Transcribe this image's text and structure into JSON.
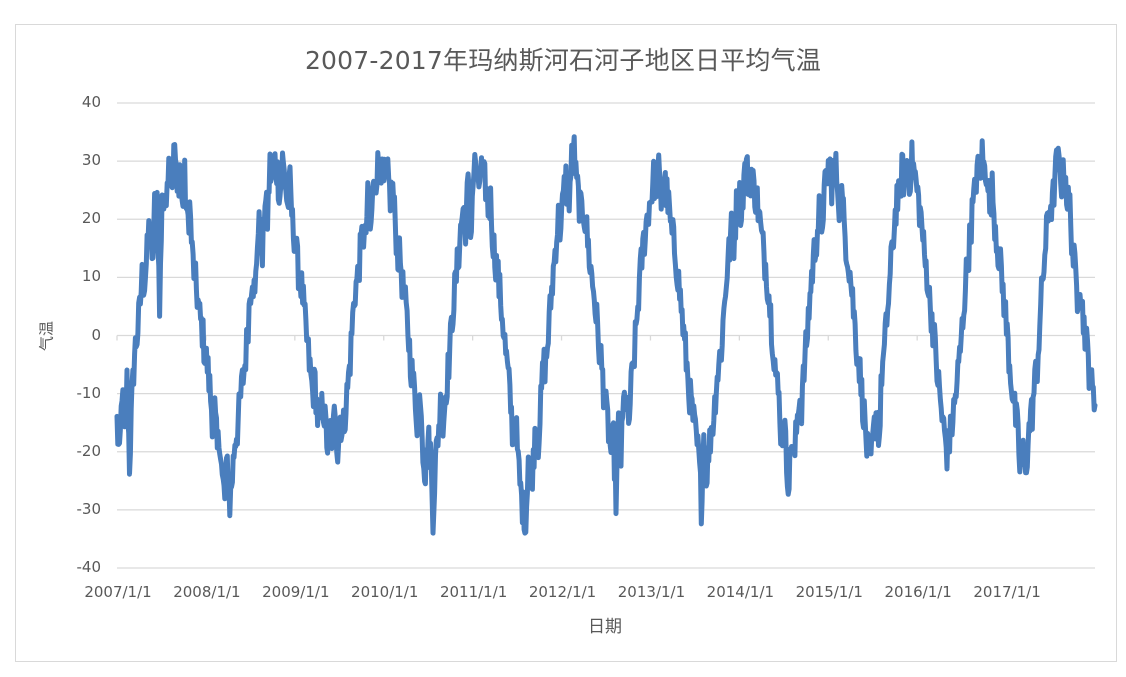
{
  "chart": {
    "title": "2007-2017年玛纳斯河石河子地区日平均气温",
    "xlabel": "日期",
    "ylabel": "气温",
    "y_ticks": [
      "40",
      "30",
      "20",
      "10",
      "0",
      "-10",
      "-20",
      "-30",
      "-40"
    ],
    "x_ticks": [
      "2007/1/1",
      "2008/1/1",
      "2009/1/1",
      "2010/1/1",
      "2011/1/1",
      "2012/1/1",
      "2013/1/1",
      "2014/1/1",
      "2015/1/1",
      "2016/1/1",
      "2017/1/1"
    ],
    "colors": {
      "series": "#4a7ebd",
      "grid": "#d9d9d9",
      "text": "#595959",
      "border": "#d9d9d9"
    }
  },
  "chart_data": {
    "type": "line",
    "title": "2007-2017年玛纳斯河石河子地区日平均气温",
    "xlabel": "日期",
    "ylabel": "气温",
    "ylim": [
      -40,
      40
    ],
    "y_tick_step": 10,
    "grid": true,
    "legend": "none",
    "x_range": [
      "2007/1/1",
      "2017/12/31"
    ],
    "x_tick_labels": [
      "2007/1/1",
      "2008/1/1",
      "2009/1/1",
      "2010/1/1",
      "2011/1/1",
      "2012/1/1",
      "2013/1/1",
      "2014/1/1",
      "2015/1/1",
      "2016/1/1",
      "2017/1/1"
    ],
    "series": [
      {
        "name": "日平均气温",
        "sampling": "approximate, roughly weekly (every 7 days) from 2007/1/1",
        "yearly_extremes_estimated": [
          {
            "year": 2007,
            "max": 33,
            "min": -23
          },
          {
            "year": 2008,
            "max": 30.5,
            "min": -29
          },
          {
            "year": 2009,
            "max": 31,
            "min": -20
          },
          {
            "year": 2010,
            "max": 30.5,
            "min": -31
          },
          {
            "year": 2011,
            "max": 34,
            "min": -33
          },
          {
            "year": 2012,
            "max": 28.5,
            "min": -28
          },
          {
            "year": 2013,
            "max": 29.5,
            "min": -29
          },
          {
            "year": 2014,
            "max": 30.5,
            "min": -25
          },
          {
            "year": 2015,
            "max": 31.5,
            "min": -23
          },
          {
            "year": 2016,
            "max": 31,
            "min": -20
          },
          {
            "year": 2017,
            "max": 30.5,
            "min": -24
          }
        ],
        "values": [
          -15,
          -22,
          -9,
          -18,
          -8,
          -22,
          -11,
          -3,
          0,
          4,
          10,
          9,
          14,
          20,
          11,
          22,
          24,
          4,
          25,
          21,
          28,
          30,
          26,
          33,
          24,
          29,
          22,
          27,
          19,
          22,
          14,
          10,
          7,
          3,
          1,
          -3,
          -5,
          -9,
          -14,
          -13,
          -20,
          -17,
          -25,
          -28,
          -22,
          -29,
          -24,
          -18,
          -16,
          -12,
          -8,
          -5,
          0,
          7,
          11,
          6,
          17,
          19,
          13,
          24,
          20,
          29,
          26,
          30,
          28,
          24,
          30,
          27,
          22,
          26,
          19,
          17,
          12,
          10,
          7,
          2,
          -2,
          -6,
          -10,
          -8,
          -14,
          -16,
          -11,
          -15,
          -19,
          -16,
          -18,
          -12,
          -20,
          -14,
          -17,
          -13,
          -9,
          -4,
          3,
          8,
          10,
          14,
          18,
          16,
          23,
          17,
          24,
          27,
          29,
          31,
          25,
          28,
          27,
          24,
          25,
          19,
          14,
          13,
          8,
          5,
          1,
          -4,
          -8,
          -11,
          -16,
          -9,
          -19,
          -24,
          -18,
          -20,
          -31,
          -22,
          -17,
          -12,
          -16,
          -10,
          -6,
          -1,
          5,
          9,
          13,
          18,
          22,
          19,
          26,
          17,
          27,
          30,
          24,
          29,
          27,
          26,
          22,
          23,
          16,
          13,
          10,
          6,
          2,
          -3,
          -7,
          -12,
          -18,
          -15,
          -22,
          -27,
          -30,
          -33,
          -20,
          -25,
          -22,
          -14,
          -18,
          -12,
          -5,
          -5,
          0,
          6,
          11,
          16,
          20,
          18,
          24,
          27,
          22,
          28,
          34,
          27,
          24,
          21,
          22,
          19,
          15,
          11,
          8,
          4,
          -1,
          -4,
          -9,
          -13,
          -16,
          -20,
          -18,
          -28,
          -16,
          -21,
          -12,
          -10,
          -16,
          -9,
          -5,
          1,
          7,
          12,
          16,
          19,
          22,
          24,
          27,
          26,
          28,
          23,
          27,
          25,
          22,
          18,
          16,
          13,
          9,
          5,
          0,
          -4,
          -9,
          -12,
          -15,
          -18,
          -21,
          -29,
          -17,
          -24,
          -20,
          -16,
          -14,
          -8,
          -5,
          -2,
          4,
          10,
          14,
          18,
          16,
          22,
          25,
          21,
          27,
          29,
          26,
          28,
          25,
          24,
          21,
          17,
          14,
          11,
          7,
          2,
          -3,
          -8,
          -11,
          -18,
          -14,
          -22,
          -25,
          -17,
          -22,
          -16,
          -10,
          -12,
          -6,
          -1,
          5,
          10,
          14,
          17,
          21,
          19,
          24,
          27,
          30,
          26,
          29,
          28,
          23,
          24,
          19,
          15,
          12,
          8,
          3,
          -2,
          -5,
          -10,
          -14,
          -19,
          -23,
          -20,
          -16,
          -12,
          -18,
          -6,
          -3,
          3,
          8,
          14,
          19,
          24,
          23,
          29,
          26,
          31,
          27,
          30,
          28,
          25,
          22,
          19,
          13,
          11,
          6,
          3,
          -1,
          -6,
          -10,
          -14,
          -17,
          -20,
          -18,
          -15,
          -12,
          -8,
          -4,
          1,
          7,
          12,
          16,
          21,
          24,
          29,
          26,
          31,
          28,
          29,
          22,
          25,
          20,
          16,
          13,
          9,
          5,
          0,
          -5,
          -9,
          -13,
          -16,
          -22,
          -19,
          -24,
          -20,
          -15,
          -13,
          -8,
          -5,
          2,
          9,
          14,
          19,
          23,
          22,
          27,
          30,
          28,
          26,
          29,
          23,
          22,
          15,
          11,
          7,
          10,
          4,
          1,
          -3,
          -7,
          -10,
          -12
        ]
      }
    ]
  }
}
